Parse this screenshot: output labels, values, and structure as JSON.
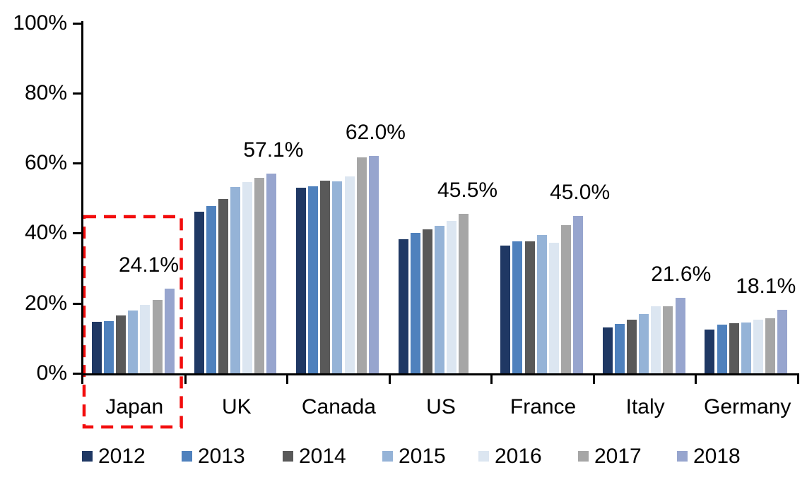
{
  "chart_data": {
    "type": "bar",
    "title": "",
    "xlabel": "",
    "ylabel": "",
    "categories": [
      "Japan",
      "UK",
      "Canada",
      "US",
      "France",
      "Italy",
      "Germany"
    ],
    "series": [
      {
        "name": "2012",
        "color": "#1F3864",
        "values": [
          14.8,
          46.2,
          52.9,
          38.2,
          36.5,
          13.2,
          12.4
        ]
      },
      {
        "name": "2013",
        "color": "#4F81BD",
        "values": [
          15.0,
          47.7,
          53.3,
          40.0,
          37.7,
          14.1,
          13.9
        ]
      },
      {
        "name": "2014",
        "color": "#595959",
        "values": [
          16.6,
          49.7,
          54.9,
          41.1,
          37.7,
          15.4,
          14.4
        ]
      },
      {
        "name": "2015",
        "color": "#95B3D7",
        "values": [
          17.9,
          53.1,
          54.8,
          42.2,
          39.4,
          17.0,
          14.6
        ]
      },
      {
        "name": "2016",
        "color": "#DCE6F1",
        "values": [
          19.6,
          54.6,
          56.2,
          43.5,
          37.3,
          19.1,
          15.4
        ]
      },
      {
        "name": "2017",
        "color": "#A6A6A6",
        "values": [
          20.9,
          55.8,
          61.7,
          45.5,
          42.3,
          19.2,
          15.8
        ]
      },
      {
        "name": "2018",
        "color": "#97A5CE",
        "values": [
          24.1,
          57.1,
          62.0,
          null,
          45.0,
          21.6,
          18.1
        ]
      }
    ],
    "data_labels": [
      "24.1%",
      "57.1%",
      "62.0%",
      "45.5%",
      "45.0%",
      "21.6%",
      "18.1%"
    ],
    "y_axis": {
      "min": 0,
      "max": 100,
      "tick_labels": [
        "0%",
        "20%",
        "40%",
        "60%",
        "80%",
        "100%"
      ],
      "grid": false
    },
    "legend": {
      "position": "bottom",
      "entries": [
        "2012",
        "2013",
        "2014",
        "2015",
        "2016",
        "2017",
        "2018"
      ]
    },
    "annotations": [
      {
        "shape": "dashed-rectangle",
        "category": "Japan",
        "color": "#F20D0D"
      }
    ],
    "axis_color": "#000000",
    "text_color": "#000000",
    "background_color": "#FFFFFF"
  }
}
